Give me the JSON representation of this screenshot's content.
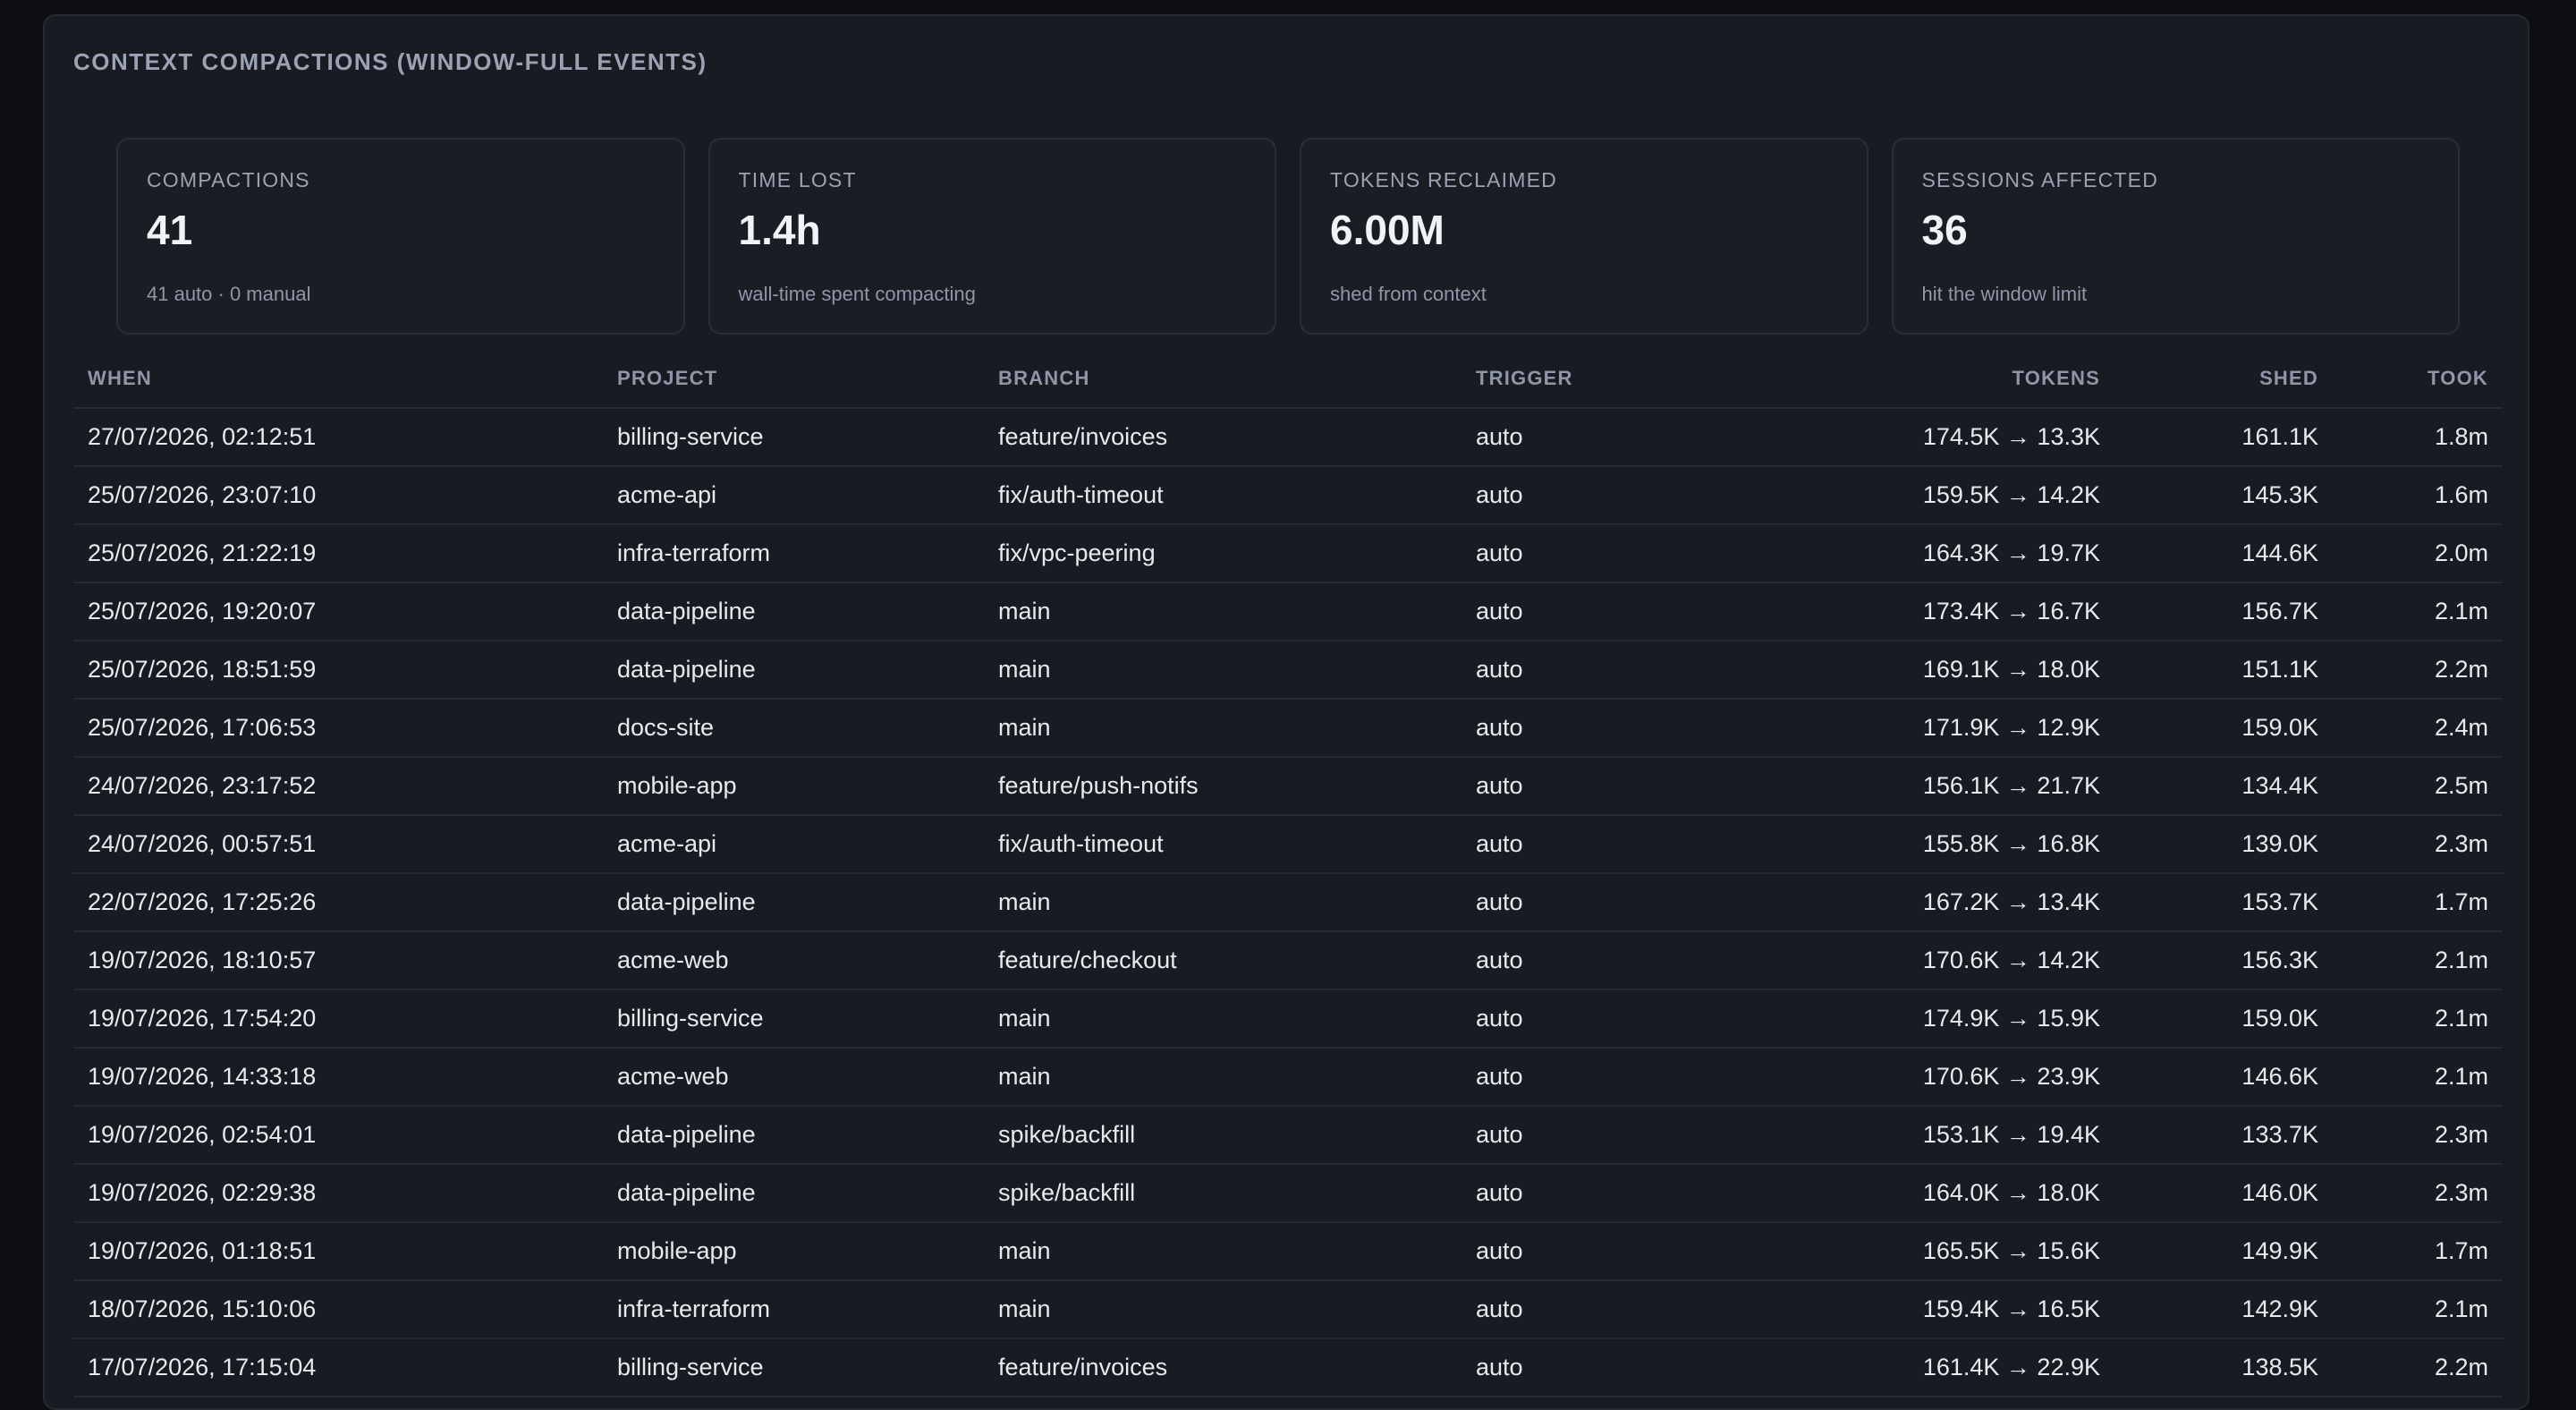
{
  "panel": {
    "title": "CONTEXT COMPACTIONS (WINDOW-FULL EVENTS)"
  },
  "stats": [
    {
      "label": "COMPACTIONS",
      "value": "41",
      "sub": "41 auto · 0 manual"
    },
    {
      "label": "TIME LOST",
      "value": "1.4h",
      "sub": "wall-time spent compacting"
    },
    {
      "label": "TOKENS RECLAIMED",
      "value": "6.00M",
      "sub": "shed from context"
    },
    {
      "label": "SESSIONS AFFECTED",
      "value": "36",
      "sub": "hit the window limit"
    }
  ],
  "table": {
    "headers": {
      "when": "WHEN",
      "project": "PROJECT",
      "branch": "BRANCH",
      "trigger": "TRIGGER",
      "tokens": "TOKENS",
      "shed": "SHED",
      "took": "TOOK"
    },
    "rows": [
      {
        "when": "27/07/2026, 02:12:51",
        "project": "billing-service",
        "branch": "feature/invoices",
        "trigger": "auto",
        "tokens": "174.5K → 13.3K",
        "shed": "161.1K",
        "took": "1.8m"
      },
      {
        "when": "25/07/2026, 23:07:10",
        "project": "acme-api",
        "branch": "fix/auth-timeout",
        "trigger": "auto",
        "tokens": "159.5K → 14.2K",
        "shed": "145.3K",
        "took": "1.6m"
      },
      {
        "when": "25/07/2026, 21:22:19",
        "project": "infra-terraform",
        "branch": "fix/vpc-peering",
        "trigger": "auto",
        "tokens": "164.3K → 19.7K",
        "shed": "144.6K",
        "took": "2.0m"
      },
      {
        "when": "25/07/2026, 19:20:07",
        "project": "data-pipeline",
        "branch": "main",
        "trigger": "auto",
        "tokens": "173.4K → 16.7K",
        "shed": "156.7K",
        "took": "2.1m"
      },
      {
        "when": "25/07/2026, 18:51:59",
        "project": "data-pipeline",
        "branch": "main",
        "trigger": "auto",
        "tokens": "169.1K → 18.0K",
        "shed": "151.1K",
        "took": "2.2m"
      },
      {
        "when": "25/07/2026, 17:06:53",
        "project": "docs-site",
        "branch": "main",
        "trigger": "auto",
        "tokens": "171.9K → 12.9K",
        "shed": "159.0K",
        "took": "2.4m"
      },
      {
        "when": "24/07/2026, 23:17:52",
        "project": "mobile-app",
        "branch": "feature/push-notifs",
        "trigger": "auto",
        "tokens": "156.1K → 21.7K",
        "shed": "134.4K",
        "took": "2.5m"
      },
      {
        "when": "24/07/2026, 00:57:51",
        "project": "acme-api",
        "branch": "fix/auth-timeout",
        "trigger": "auto",
        "tokens": "155.8K → 16.8K",
        "shed": "139.0K",
        "took": "2.3m"
      },
      {
        "when": "22/07/2026, 17:25:26",
        "project": "data-pipeline",
        "branch": "main",
        "trigger": "auto",
        "tokens": "167.2K → 13.4K",
        "shed": "153.7K",
        "took": "1.7m"
      },
      {
        "when": "19/07/2026, 18:10:57",
        "project": "acme-web",
        "branch": "feature/checkout",
        "trigger": "auto",
        "tokens": "170.6K → 14.2K",
        "shed": "156.3K",
        "took": "2.1m"
      },
      {
        "when": "19/07/2026, 17:54:20",
        "project": "billing-service",
        "branch": "main",
        "trigger": "auto",
        "tokens": "174.9K → 15.9K",
        "shed": "159.0K",
        "took": "2.1m"
      },
      {
        "when": "19/07/2026, 14:33:18",
        "project": "acme-web",
        "branch": "main",
        "trigger": "auto",
        "tokens": "170.6K → 23.9K",
        "shed": "146.6K",
        "took": "2.1m"
      },
      {
        "when": "19/07/2026, 02:54:01",
        "project": "data-pipeline",
        "branch": "spike/backfill",
        "trigger": "auto",
        "tokens": "153.1K → 19.4K",
        "shed": "133.7K",
        "took": "2.3m"
      },
      {
        "when": "19/07/2026, 02:29:38",
        "project": "data-pipeline",
        "branch": "spike/backfill",
        "trigger": "auto",
        "tokens": "164.0K → 18.0K",
        "shed": "146.0K",
        "took": "2.3m"
      },
      {
        "when": "19/07/2026, 01:18:51",
        "project": "mobile-app",
        "branch": "main",
        "trigger": "auto",
        "tokens": "165.5K → 15.6K",
        "shed": "149.9K",
        "took": "1.7m"
      },
      {
        "when": "18/07/2026, 15:10:06",
        "project": "infra-terraform",
        "branch": "main",
        "trigger": "auto",
        "tokens": "159.4K → 16.5K",
        "shed": "142.9K",
        "took": "2.1m"
      },
      {
        "when": "17/07/2026, 17:15:04",
        "project": "billing-service",
        "branch": "feature/invoices",
        "trigger": "auto",
        "tokens": "161.4K → 22.9K",
        "shed": "138.5K",
        "took": "2.2m"
      }
    ]
  }
}
